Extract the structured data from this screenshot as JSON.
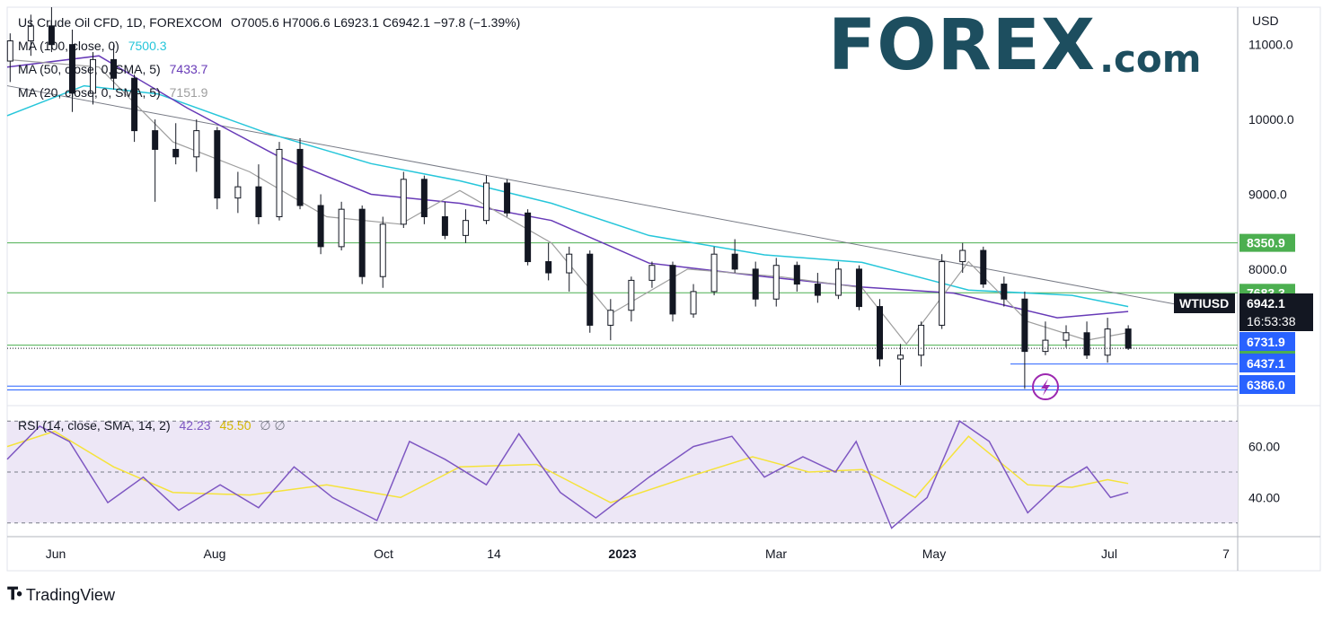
{
  "legend": {
    "symbol": "Us Crude Oil CFD, 1D, FOREXCOM",
    "ohlc": "O7005.6  H7006.6  L6923.1  C6942.1  −97.8 (−1.39%)",
    "ma100_label": "MA (100, close, 0)",
    "ma100_value": "7500.3",
    "ma50_label": "MA (50, close, 0, SMA, 5)",
    "ma50_value": "7433.7",
    "ma20_label": "MA (20, close, 0, SMA, 5)",
    "ma20_value": "7151.9",
    "rsi_label": "RSI (14, close, SMA, 14, 2)",
    "rsi_value": "42.23",
    "rsi_sma_value": "45.50",
    "rsi_extra": "∅  ∅"
  },
  "logo": {
    "forex": "FOREX",
    "com": ".com"
  },
  "brand": {
    "name": "TradingView"
  },
  "colors": {
    "ma100": "#26c6da",
    "ma50": "#673ab7",
    "ma20": "#9e9e9e",
    "candle": "#131722",
    "green_level": "#4caf50",
    "blue_level": "#2962ff",
    "rsi": "#7e57c2",
    "rsi_sma": "#f5e33b",
    "rsi_band": "#ede7f6"
  },
  "chart_data": {
    "type": "candlestick",
    "currency": "USD",
    "y_ticks": [
      11000,
      10000,
      9000,
      8000
    ],
    "ylim": [
      6200,
      11500
    ],
    "x_ticks": [
      "Jun",
      "Aug",
      "Oct",
      "14",
      "2023",
      "Mar",
      "May",
      "Jul",
      "7"
    ],
    "levels_green": [
      {
        "value": 8350.9,
        "label": "8350.9"
      },
      {
        "value": 7683.3,
        "label": "7683.3"
      },
      {
        "value": 6983.8,
        "label": "6983.8"
      }
    ],
    "levels_blue": [
      {
        "value": 6731.9,
        "label": "6731.9"
      },
      {
        "value": 6437.1,
        "label": "6437.1"
      },
      {
        "value": 6386.0,
        "label": "6386.0"
      }
    ],
    "current": {
      "symbol": "WTIUSD",
      "price": 6942.1,
      "price_label": "6942.1",
      "countdown": "16:53:38"
    },
    "trendline": {
      "from": {
        "date": "2022-05-25",
        "price": 10450
      },
      "to": {
        "date": "2023-07-05",
        "price": 7450
      }
    },
    "ma100": [
      {
        "date": "2022-05-25",
        "price": 10050
      },
      {
        "date": "2022-06-20",
        "price": 10450
      },
      {
        "date": "2022-07-15",
        "price": 10340
      },
      {
        "date": "2022-08-20",
        "price": 9830
      },
      {
        "date": "2022-09-25",
        "price": 9410
      },
      {
        "date": "2022-10-25",
        "price": 9180
      },
      {
        "date": "2022-11-25",
        "price": 8880
      },
      {
        "date": "2022-12-28",
        "price": 8450
      },
      {
        "date": "2023-02-05",
        "price": 8190
      },
      {
        "date": "2023-03-10",
        "price": 8090
      },
      {
        "date": "2023-04-15",
        "price": 7720
      },
      {
        "date": "2023-05-20",
        "price": 7650
      },
      {
        "date": "2023-06-08",
        "price": 7500
      }
    ],
    "ma50": [
      {
        "date": "2022-05-25",
        "price": 10700
      },
      {
        "date": "2022-06-25",
        "price": 10850
      },
      {
        "date": "2022-07-25",
        "price": 10150
      },
      {
        "date": "2022-08-25",
        "price": 9500
      },
      {
        "date": "2022-09-25",
        "price": 9000
      },
      {
        "date": "2022-10-25",
        "price": 8880
      },
      {
        "date": "2022-11-25",
        "price": 8650
      },
      {
        "date": "2022-12-28",
        "price": 8080
      },
      {
        "date": "2023-02-05",
        "price": 7900
      },
      {
        "date": "2023-03-10",
        "price": 7760
      },
      {
        "date": "2023-04-10",
        "price": 7680
      },
      {
        "date": "2023-05-15",
        "price": 7350
      },
      {
        "date": "2023-06-08",
        "price": 7434
      }
    ],
    "ma20": [
      {
        "date": "2022-05-25",
        "price": 10800
      },
      {
        "date": "2022-06-25",
        "price": 10700
      },
      {
        "date": "2022-07-20",
        "price": 9700
      },
      {
        "date": "2022-08-15",
        "price": 9300
      },
      {
        "date": "2022-09-10",
        "price": 8700
      },
      {
        "date": "2022-10-05",
        "price": 8600
      },
      {
        "date": "2022-10-25",
        "price": 9050
      },
      {
        "date": "2022-11-25",
        "price": 8350
      },
      {
        "date": "2022-12-15",
        "price": 7400
      },
      {
        "date": "2023-01-10",
        "price": 8000
      },
      {
        "date": "2023-02-10",
        "price": 7900
      },
      {
        "date": "2023-03-10",
        "price": 7750
      },
      {
        "date": "2023-03-25",
        "price": 7000
      },
      {
        "date": "2023-04-15",
        "price": 8100
      },
      {
        "date": "2023-05-05",
        "price": 7300
      },
      {
        "date": "2023-05-25",
        "price": 7050
      },
      {
        "date": "2023-06-08",
        "price": 7152
      }
    ],
    "candles": [
      {
        "date": "2022-05-26",
        "open": 10780,
        "high": 11150,
        "low": 10500,
        "close": 11050
      },
      {
        "date": "2022-06-02",
        "open": 11050,
        "high": 11400,
        "low": 10850,
        "close": 11250
      },
      {
        "date": "2022-06-09",
        "open": 11250,
        "high": 11500,
        "low": 10900,
        "close": 11000
      },
      {
        "date": "2022-06-16",
        "open": 11000,
        "high": 11200,
        "low": 10100,
        "close": 10350
      },
      {
        "date": "2022-06-23",
        "open": 10350,
        "high": 10900,
        "low": 10200,
        "close": 10800
      },
      {
        "date": "2022-06-30",
        "open": 10800,
        "high": 11000,
        "low": 10400,
        "close": 10550
      },
      {
        "date": "2022-07-07",
        "open": 10550,
        "high": 10600,
        "low": 9700,
        "close": 9850
      },
      {
        "date": "2022-07-14",
        "open": 9850,
        "high": 10000,
        "low": 8900,
        "close": 9600
      },
      {
        "date": "2022-07-21",
        "open": 9600,
        "high": 9950,
        "low": 9400,
        "close": 9500
      },
      {
        "date": "2022-07-28",
        "open": 9500,
        "high": 10000,
        "low": 9300,
        "close": 9850
      },
      {
        "date": "2022-08-04",
        "open": 9850,
        "high": 9900,
        "low": 8800,
        "close": 8950
      },
      {
        "date": "2022-08-11",
        "open": 8950,
        "high": 9300,
        "low": 8750,
        "close": 9100
      },
      {
        "date": "2022-08-18",
        "open": 9100,
        "high": 9400,
        "low": 8600,
        "close": 8700
      },
      {
        "date": "2022-08-25",
        "open": 8700,
        "high": 9700,
        "low": 8650,
        "close": 9600
      },
      {
        "date": "2022-09-01",
        "open": 9600,
        "high": 9750,
        "low": 8800,
        "close": 8850
      },
      {
        "date": "2022-09-08",
        "open": 8850,
        "high": 9000,
        "low": 8200,
        "close": 8300
      },
      {
        "date": "2022-09-15",
        "open": 8300,
        "high": 8900,
        "low": 8250,
        "close": 8800
      },
      {
        "date": "2022-09-22",
        "open": 8800,
        "high": 8850,
        "low": 7800,
        "close": 7900
      },
      {
        "date": "2022-09-29",
        "open": 7900,
        "high": 8700,
        "low": 7750,
        "close": 8600
      },
      {
        "date": "2022-10-06",
        "open": 8600,
        "high": 9300,
        "low": 8550,
        "close": 9200
      },
      {
        "date": "2022-10-13",
        "open": 9200,
        "high": 9250,
        "low": 8600,
        "close": 8700
      },
      {
        "date": "2022-10-20",
        "open": 8700,
        "high": 8900,
        "low": 8400,
        "close": 8450
      },
      {
        "date": "2022-10-27",
        "open": 8450,
        "high": 8800,
        "low": 8350,
        "close": 8650
      },
      {
        "date": "2022-11-03",
        "open": 8650,
        "high": 9250,
        "low": 8600,
        "close": 9150
      },
      {
        "date": "2022-11-10",
        "open": 9150,
        "high": 9200,
        "low": 8700,
        "close": 8750
      },
      {
        "date": "2022-11-17",
        "open": 8750,
        "high": 8800,
        "low": 8050,
        "close": 8100
      },
      {
        "date": "2022-11-24",
        "open": 8100,
        "high": 8350,
        "low": 7850,
        "close": 7950
      },
      {
        "date": "2022-12-01",
        "open": 7950,
        "high": 8300,
        "low": 7700,
        "close": 8200
      },
      {
        "date": "2022-12-08",
        "open": 8200,
        "high": 8250,
        "low": 7150,
        "close": 7250
      },
      {
        "date": "2022-12-15",
        "open": 7250,
        "high": 7600,
        "low": 7050,
        "close": 7450
      },
      {
        "date": "2022-12-22",
        "open": 7450,
        "high": 7900,
        "low": 7300,
        "close": 7850
      },
      {
        "date": "2022-12-29",
        "open": 7850,
        "high": 8100,
        "low": 7750,
        "close": 8050
      },
      {
        "date": "2023-01-05",
        "open": 8050,
        "high": 8100,
        "low": 7300,
        "close": 7400
      },
      {
        "date": "2023-01-12",
        "open": 7400,
        "high": 7800,
        "low": 7350,
        "close": 7700
      },
      {
        "date": "2023-01-19",
        "open": 7700,
        "high": 8300,
        "low": 7650,
        "close": 8200
      },
      {
        "date": "2023-01-26",
        "open": 8200,
        "high": 8400,
        "low": 7950,
        "close": 8000
      },
      {
        "date": "2023-02-02",
        "open": 8000,
        "high": 8100,
        "low": 7500,
        "close": 7600
      },
      {
        "date": "2023-02-09",
        "open": 7600,
        "high": 8150,
        "low": 7500,
        "close": 8050
      },
      {
        "date": "2023-02-16",
        "open": 8050,
        "high": 8100,
        "low": 7700,
        "close": 7800
      },
      {
        "date": "2023-02-23",
        "open": 7800,
        "high": 7950,
        "low": 7550,
        "close": 7650
      },
      {
        "date": "2023-03-02",
        "open": 7650,
        "high": 8100,
        "low": 7600,
        "close": 8000
      },
      {
        "date": "2023-03-09",
        "open": 8000,
        "high": 8050,
        "low": 7450,
        "close": 7500
      },
      {
        "date": "2023-03-16",
        "open": 7500,
        "high": 7600,
        "low": 6700,
        "close": 6800
      },
      {
        "date": "2023-03-23",
        "open": 6800,
        "high": 7000,
        "low": 6450,
        "close": 6850
      },
      {
        "date": "2023-03-30",
        "open": 6850,
        "high": 7300,
        "low": 6700,
        "close": 7250
      },
      {
        "date": "2023-04-06",
        "open": 7250,
        "high": 8200,
        "low": 7200,
        "close": 8100
      },
      {
        "date": "2023-04-13",
        "open": 8100,
        "high": 8350,
        "low": 7950,
        "close": 8250
      },
      {
        "date": "2023-04-20",
        "open": 8250,
        "high": 8300,
        "low": 7750,
        "close": 7800
      },
      {
        "date": "2023-04-27",
        "open": 7800,
        "high": 7900,
        "low": 7500,
        "close": 7600
      },
      {
        "date": "2023-05-04",
        "open": 7600,
        "high": 7700,
        "low": 6400,
        "close": 6900
      },
      {
        "date": "2023-05-11",
        "open": 6900,
        "high": 7300,
        "low": 6850,
        "close": 7050
      },
      {
        "date": "2023-05-18",
        "open": 7050,
        "high": 7250,
        "low": 6950,
        "close": 7150
      },
      {
        "date": "2023-05-25",
        "open": 7150,
        "high": 7300,
        "low": 6800,
        "close": 6850
      },
      {
        "date": "2023-06-01",
        "open": 6850,
        "high": 7350,
        "low": 6750,
        "close": 7200
      },
      {
        "date": "2023-06-08",
        "open": 7200,
        "high": 7250,
        "low": 6920,
        "close": 6942
      }
    ],
    "rsi": {
      "y_ticks": [
        60,
        40
      ],
      "ylim": [
        25,
        75
      ],
      "bands": [
        70,
        50,
        30
      ],
      "rsi_line": [
        {
          "date": "2022-05-25",
          "value": 55
        },
        {
          "date": "2022-06-05",
          "value": 68
        },
        {
          "date": "2022-06-15",
          "value": 62
        },
        {
          "date": "2022-06-28",
          "value": 38
        },
        {
          "date": "2022-07-10",
          "value": 48
        },
        {
          "date": "2022-07-22",
          "value": 35
        },
        {
          "date": "2022-08-05",
          "value": 45
        },
        {
          "date": "2022-08-18",
          "value": 36
        },
        {
          "date": "2022-08-30",
          "value": 52
        },
        {
          "date": "2022-09-12",
          "value": 40
        },
        {
          "date": "2022-09-27",
          "value": 31
        },
        {
          "date": "2022-10-08",
          "value": 62
        },
        {
          "date": "2022-10-20",
          "value": 55
        },
        {
          "date": "2022-11-03",
          "value": 45
        },
        {
          "date": "2022-11-14",
          "value": 65
        },
        {
          "date": "2022-11-28",
          "value": 42
        },
        {
          "date": "2022-12-10",
          "value": 32
        },
        {
          "date": "2022-12-28",
          "value": 48
        },
        {
          "date": "2023-01-12",
          "value": 60
        },
        {
          "date": "2023-01-25",
          "value": 64
        },
        {
          "date": "2023-02-05",
          "value": 48
        },
        {
          "date": "2023-02-18",
          "value": 56
        },
        {
          "date": "2023-03-01",
          "value": 50
        },
        {
          "date": "2023-03-08",
          "value": 62
        },
        {
          "date": "2023-03-20",
          "value": 28
        },
        {
          "date": "2023-04-01",
          "value": 40
        },
        {
          "date": "2023-04-12",
          "value": 70
        },
        {
          "date": "2023-04-22",
          "value": 62
        },
        {
          "date": "2023-05-05",
          "value": 34
        },
        {
          "date": "2023-05-15",
          "value": 45
        },
        {
          "date": "2023-05-25",
          "value": 52
        },
        {
          "date": "2023-06-02",
          "value": 40
        },
        {
          "date": "2023-06-08",
          "value": 42
        }
      ],
      "sma_line": [
        {
          "date": "2022-05-25",
          "value": 60
        },
        {
          "date": "2022-06-10",
          "value": 66
        },
        {
          "date": "2022-06-30",
          "value": 52
        },
        {
          "date": "2022-07-20",
          "value": 42
        },
        {
          "date": "2022-08-15",
          "value": 41
        },
        {
          "date": "2022-09-10",
          "value": 45
        },
        {
          "date": "2022-10-05",
          "value": 40
        },
        {
          "date": "2022-10-25",
          "value": 52
        },
        {
          "date": "2022-11-20",
          "value": 53
        },
        {
          "date": "2022-12-15",
          "value": 38
        },
        {
          "date": "2023-01-10",
          "value": 48
        },
        {
          "date": "2023-02-01",
          "value": 56
        },
        {
          "date": "2023-02-20",
          "value": 50
        },
        {
          "date": "2023-03-10",
          "value": 51
        },
        {
          "date": "2023-03-28",
          "value": 40
        },
        {
          "date": "2023-04-15",
          "value": 64
        },
        {
          "date": "2023-05-05",
          "value": 45
        },
        {
          "date": "2023-05-20",
          "value": 44
        },
        {
          "date": "2023-06-01",
          "value": 47
        },
        {
          "date": "2023-06-08",
          "value": 45.5
        }
      ]
    }
  }
}
